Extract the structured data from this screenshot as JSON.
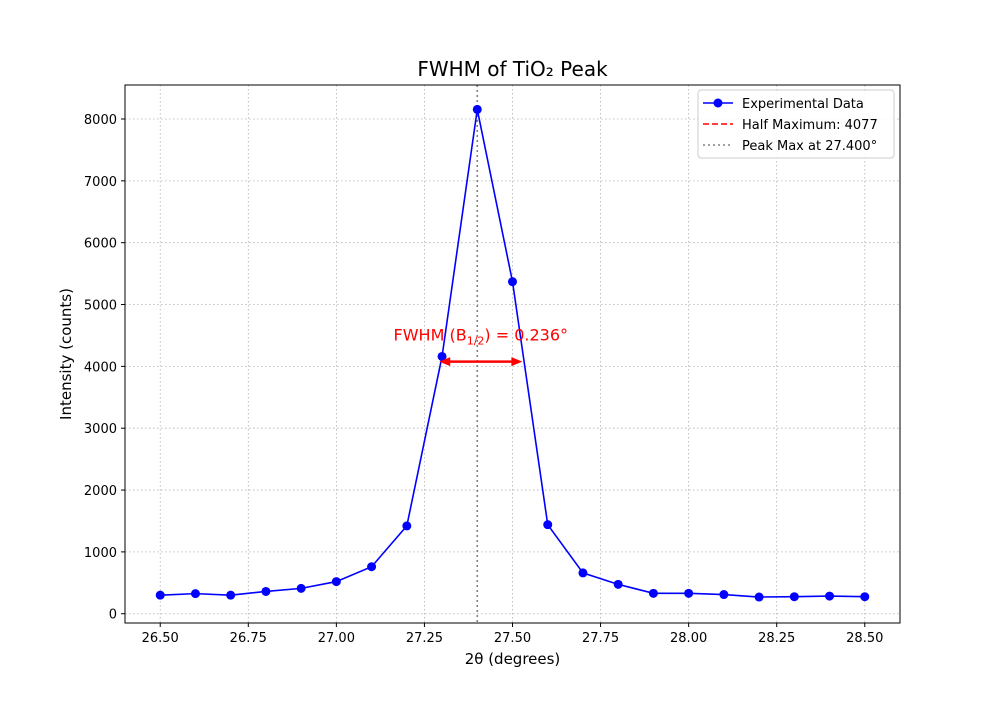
{
  "chart_data": {
    "type": "line",
    "title": "FWHM of TiO₂ Peak",
    "xlabel": "2θ (degrees)",
    "ylabel": "Intensity (counts)",
    "xlim": [
      26.4,
      28.6
    ],
    "ylim": [
      -150,
      8550
    ],
    "grid": true,
    "x_ticks": [
      26.5,
      26.75,
      27.0,
      27.25,
      27.5,
      27.75,
      28.0,
      28.25,
      28.5
    ],
    "x_tick_labels": [
      "26.50",
      "26.75",
      "27.00",
      "27.25",
      "27.50",
      "27.75",
      "28.00",
      "28.25",
      "28.50"
    ],
    "y_ticks": [
      0,
      1000,
      2000,
      3000,
      4000,
      5000,
      6000,
      7000,
      8000
    ],
    "y_tick_labels": [
      "0",
      "1000",
      "2000",
      "3000",
      "4000",
      "5000",
      "6000",
      "7000",
      "8000"
    ],
    "series": [
      {
        "name": "Experimental Data",
        "color": "#0000ff",
        "marker": "circle",
        "x": [
          26.5,
          26.6,
          26.7,
          26.8,
          26.9,
          27.0,
          27.1,
          27.2,
          27.3,
          27.4,
          27.5,
          27.6,
          27.7,
          27.8,
          27.9,
          28.0,
          28.1,
          28.2,
          28.3,
          28.4,
          28.5
        ],
        "y": [
          300,
          325,
          300,
          360,
          410,
          520,
          760,
          1420,
          4160,
          8155,
          5370,
          1440,
          660,
          475,
          330,
          330,
          310,
          270,
          275,
          285,
          275
        ]
      }
    ],
    "half_maximum": {
      "label": "Half Maximum: 4077",
      "value": 4077,
      "x_start": 27.292,
      "x_end": 27.528,
      "color": "#ff0000",
      "style": "dashed"
    },
    "peak_max": {
      "label": "Peak Max at 27.400°",
      "x": 27.4,
      "color": "#808080",
      "style": "dotted"
    },
    "annotation": {
      "text_prefix": "FWHM (B",
      "text_sub": "1/2",
      "text_suffix": ") = 0.236°",
      "x": 27.41,
      "y": 4500,
      "color": "#ff0000"
    },
    "legend": {
      "placement": "top-right"
    }
  }
}
